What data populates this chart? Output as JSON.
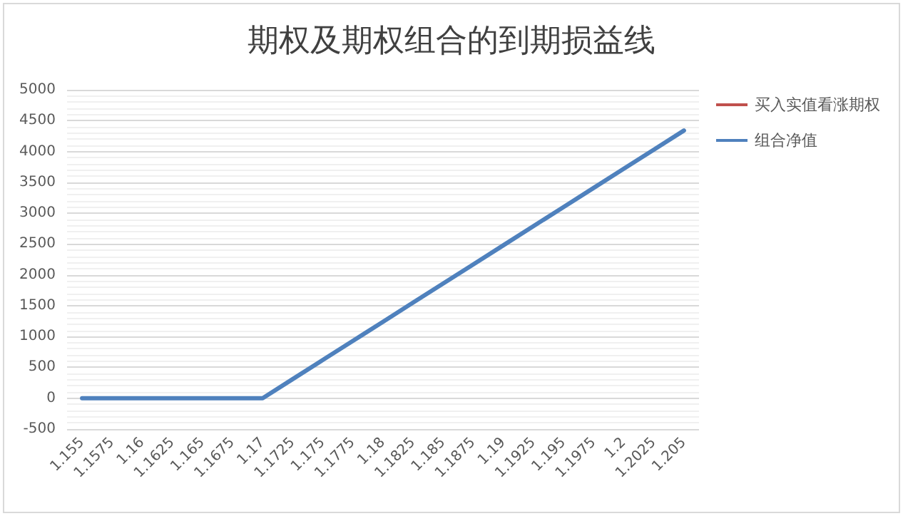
{
  "chart_data": {
    "type": "line",
    "title": "期权及期权组合的到期损益线",
    "categories": [
      "1.155",
      "1.1575",
      "1.16",
      "1.1625",
      "1.165",
      "1.1675",
      "1.17",
      "1.1725",
      "1.175",
      "1.1775",
      "1.18",
      "1.1825",
      "1.185",
      "1.1875",
      "1.19",
      "1.1925",
      "1.195",
      "1.1975",
      "1.2",
      "1.2025",
      "1.205"
    ],
    "series": [
      {
        "name": "买入实值看涨期权",
        "color": "#c0504d",
        "values": [
          null,
          null,
          null,
          null,
          null,
          null,
          null,
          null,
          null,
          null,
          null,
          null,
          null,
          null,
          null,
          null,
          null,
          null,
          null,
          null,
          null
        ]
      },
      {
        "name": "组合净值",
        "color": "#4f81bd",
        "values": [
          0,
          0,
          0,
          0,
          0,
          0,
          0,
          310,
          620,
          930,
          1240,
          1550,
          1860,
          2170,
          2480,
          2790,
          3100,
          3410,
          3720,
          4030,
          4340
        ]
      }
    ],
    "ylim": [
      -500,
      5000
    ],
    "yticks": [
      -500,
      0,
      500,
      1000,
      1500,
      2000,
      2500,
      3000,
      3500,
      4000,
      4500,
      5000
    ],
    "grid": "y",
    "legend": "right",
    "marker": "none",
    "line_style": "solid"
  }
}
